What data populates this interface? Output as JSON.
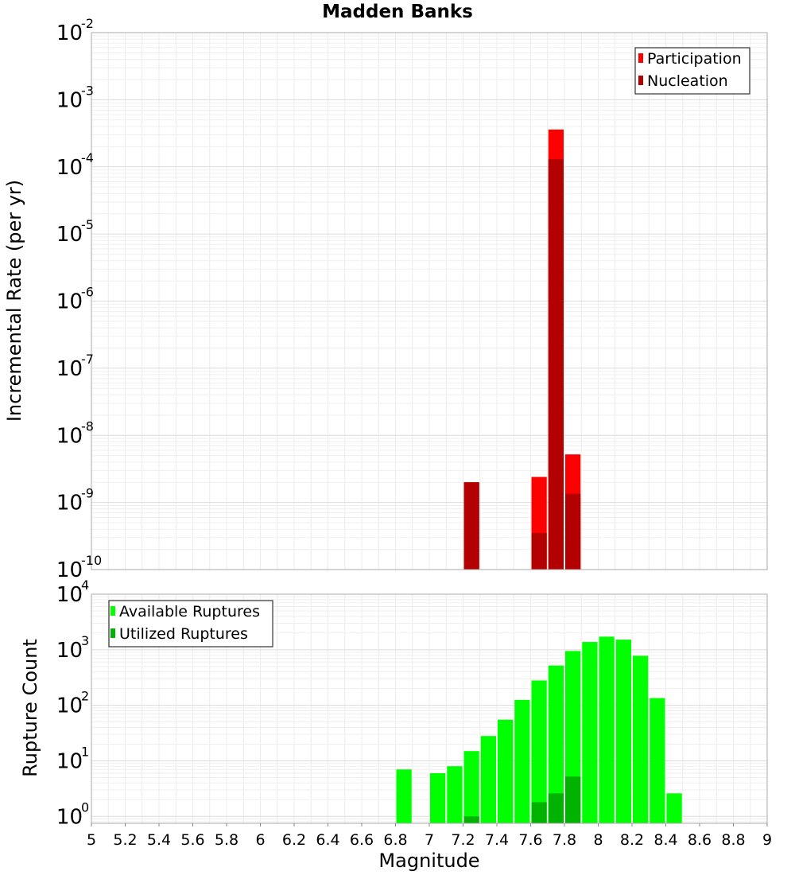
{
  "chart_data": [
    {
      "type": "bar",
      "title": "Madden Banks",
      "ylabel": "Incremental Rate (per yr)",
      "xlabel": "",
      "yscale": "log",
      "ylim": [
        1e-10,
        0.01
      ],
      "xlim": [
        5,
        9
      ],
      "bin_width": 0.1,
      "y_ticks": [
        {
          "base": "10",
          "exp": "-10",
          "value": 1e-10
        },
        {
          "base": "10",
          "exp": "-9",
          "value": 1e-09
        },
        {
          "base": "10",
          "exp": "-8",
          "value": 1e-08
        },
        {
          "base": "10",
          "exp": "-7",
          "value": 1e-07
        },
        {
          "base": "10",
          "exp": "-6",
          "value": 1e-06
        },
        {
          "base": "10",
          "exp": "-5",
          "value": 1e-05
        },
        {
          "base": "10",
          "exp": "-4",
          "value": 0.0001
        },
        {
          "base": "10",
          "exp": "-3",
          "value": 0.001
        },
        {
          "base": "10",
          "exp": "-2",
          "value": 0.01
        }
      ],
      "legend_position": "top-right",
      "grid": true,
      "series": [
        {
          "name": "Participation",
          "color": "#ff0000",
          "x": [
            7.25,
            7.65,
            7.75,
            7.85
          ],
          "values": [
            2e-09,
            2.4e-09,
            0.00036,
            5.2e-09
          ]
        },
        {
          "name": "Nucleation",
          "color": "#b30000",
          "x": [
            7.25,
            7.65,
            7.75,
            7.85
          ],
          "values": [
            2e-09,
            3.5e-10,
            0.00013,
            1.35e-09
          ]
        }
      ]
    },
    {
      "type": "bar",
      "title": "",
      "ylabel": "Rupture Count",
      "xlabel": "Magnitude",
      "yscale": "log",
      "ylim": [
        0.75,
        10000.0
      ],
      "xlim": [
        5,
        9
      ],
      "bin_width": 0.1,
      "y_ticks": [
        {
          "base": "10",
          "exp": "0",
          "value": 1
        },
        {
          "base": "10",
          "exp": "1",
          "value": 10
        },
        {
          "base": "10",
          "exp": "2",
          "value": 100
        },
        {
          "base": "10",
          "exp": "3",
          "value": 1000
        },
        {
          "base": "10",
          "exp": "4",
          "value": 10000
        }
      ],
      "x_ticks": [
        "5",
        "5.2",
        "5.4",
        "5.6",
        "5.8",
        "6",
        "6.2",
        "6.4",
        "6.6",
        "6.8",
        "7",
        "7.2",
        "7.4",
        "7.6",
        "7.8",
        "8",
        "8.2",
        "8.4",
        "8.6",
        "8.8",
        "9"
      ],
      "legend_position": "top-left",
      "grid": true,
      "series": [
        {
          "name": "Available Ruptures",
          "color": "#00ff00",
          "x": [
            6.85,
            7.05,
            7.15,
            7.25,
            7.35,
            7.45,
            7.55,
            7.65,
            7.75,
            7.85,
            7.95,
            8.05,
            8.15,
            8.25,
            8.35,
            8.45
          ],
          "values": [
            7,
            6,
            8,
            15,
            28,
            55,
            125,
            280,
            520,
            950,
            1380,
            1720,
            1520,
            780,
            135,
            2.6
          ]
        },
        {
          "name": "Utilized Ruptures",
          "color": "#00b300",
          "x": [
            7.25,
            7.65,
            7.75,
            7.85
          ],
          "values": [
            1,
            1.8,
            2.6,
            5.2
          ]
        }
      ]
    }
  ]
}
